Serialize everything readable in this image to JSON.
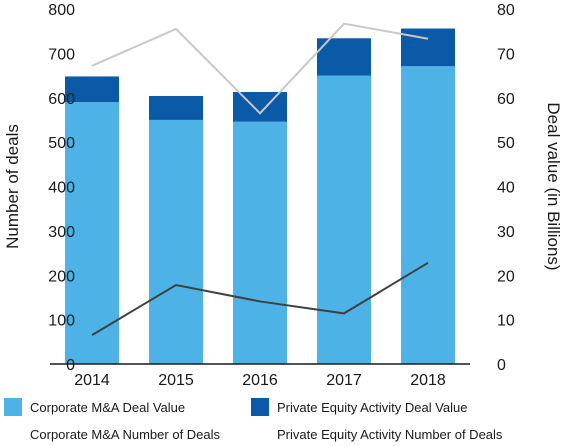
{
  "chart_data": {
    "type": "bar",
    "categories": [
      "2014",
      "2015",
      "2016",
      "2017",
      "2018"
    ],
    "stacked": true,
    "ylabel": "Number of deals",
    "y2label": "Deal value (in Billions)",
    "ylim": [
      0,
      800
    ],
    "y2lim": [
      0,
      80
    ],
    "yticks": [
      0,
      100,
      200,
      300,
      400,
      500,
      600,
      700,
      800
    ],
    "y2ticks": [
      0,
      10,
      20,
      30,
      40,
      50,
      60,
      70,
      80
    ],
    "grid": false,
    "legend_position": "bottom",
    "series": [
      {
        "name": "Corporate M&A Deal Value",
        "kind": "bar",
        "axis": "left",
        "color": "#4db3e6",
        "values": [
          590,
          550,
          546,
          650,
          671
        ]
      },
      {
        "name": "Private Equity Activity Deal Value",
        "kind": "bar",
        "axis": "left",
        "color": "#0a5aa8",
        "values": [
          58,
          54,
          67,
          84,
          85
        ]
      },
      {
        "name": "Corporate M&A Number of Deals",
        "kind": "line",
        "axis": "right",
        "color": "#404040",
        "values": [
          6.5,
          17.8,
          14.1,
          11.4,
          22.8
        ]
      },
      {
        "name": "Private Equity Activity Number of Deals",
        "kind": "line",
        "axis": "right",
        "color": "#c8c8c8",
        "values": [
          67.2,
          75.5,
          56.5,
          76.7,
          73.3
        ]
      }
    ]
  }
}
